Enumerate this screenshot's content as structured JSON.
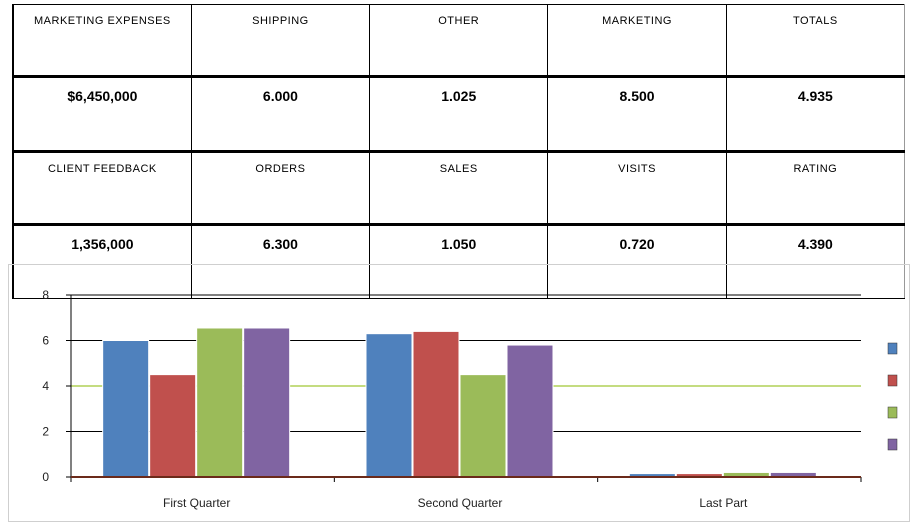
{
  "table": {
    "rows": [
      [
        "MARKETING EXPENSES",
        "SHIPPING",
        "OTHER",
        "MARKETING",
        "TOTALS"
      ],
      [
        "$6,450,000",
        "6.000",
        "1.025",
        "8.500",
        "4.935"
      ],
      [
        "CLIENT FEEDBACK",
        "ORDERS",
        "SALES",
        "VISITS",
        "RATING"
      ],
      [
        "1,356,000",
        "6.300",
        "1.050",
        "0.720",
        "4.390"
      ]
    ]
  },
  "chart_data": {
    "type": "bar",
    "categories": [
      "First Quarter",
      "Second Quarter",
      "Last Part"
    ],
    "series": [
      {
        "color": "#4F81BD",
        "values": [
          6.0,
          6.3,
          0.15
        ]
      },
      {
        "color": "#C0504D",
        "values": [
          4.5,
          6.4,
          0.15
        ]
      },
      {
        "color": "#9BBB59",
        "values": [
          6.55,
          4.5,
          0.2
        ]
      },
      {
        "color": "#8064A2",
        "values": [
          6.55,
          5.8,
          0.2
        ]
      }
    ],
    "yticks": [
      "0",
      "2",
      "4",
      "6",
      "8"
    ],
    "ylim": [
      0,
      8
    ],
    "grid": true,
    "legend": "right",
    "title": "",
    "xlabel": "",
    "ylabel": ""
  }
}
